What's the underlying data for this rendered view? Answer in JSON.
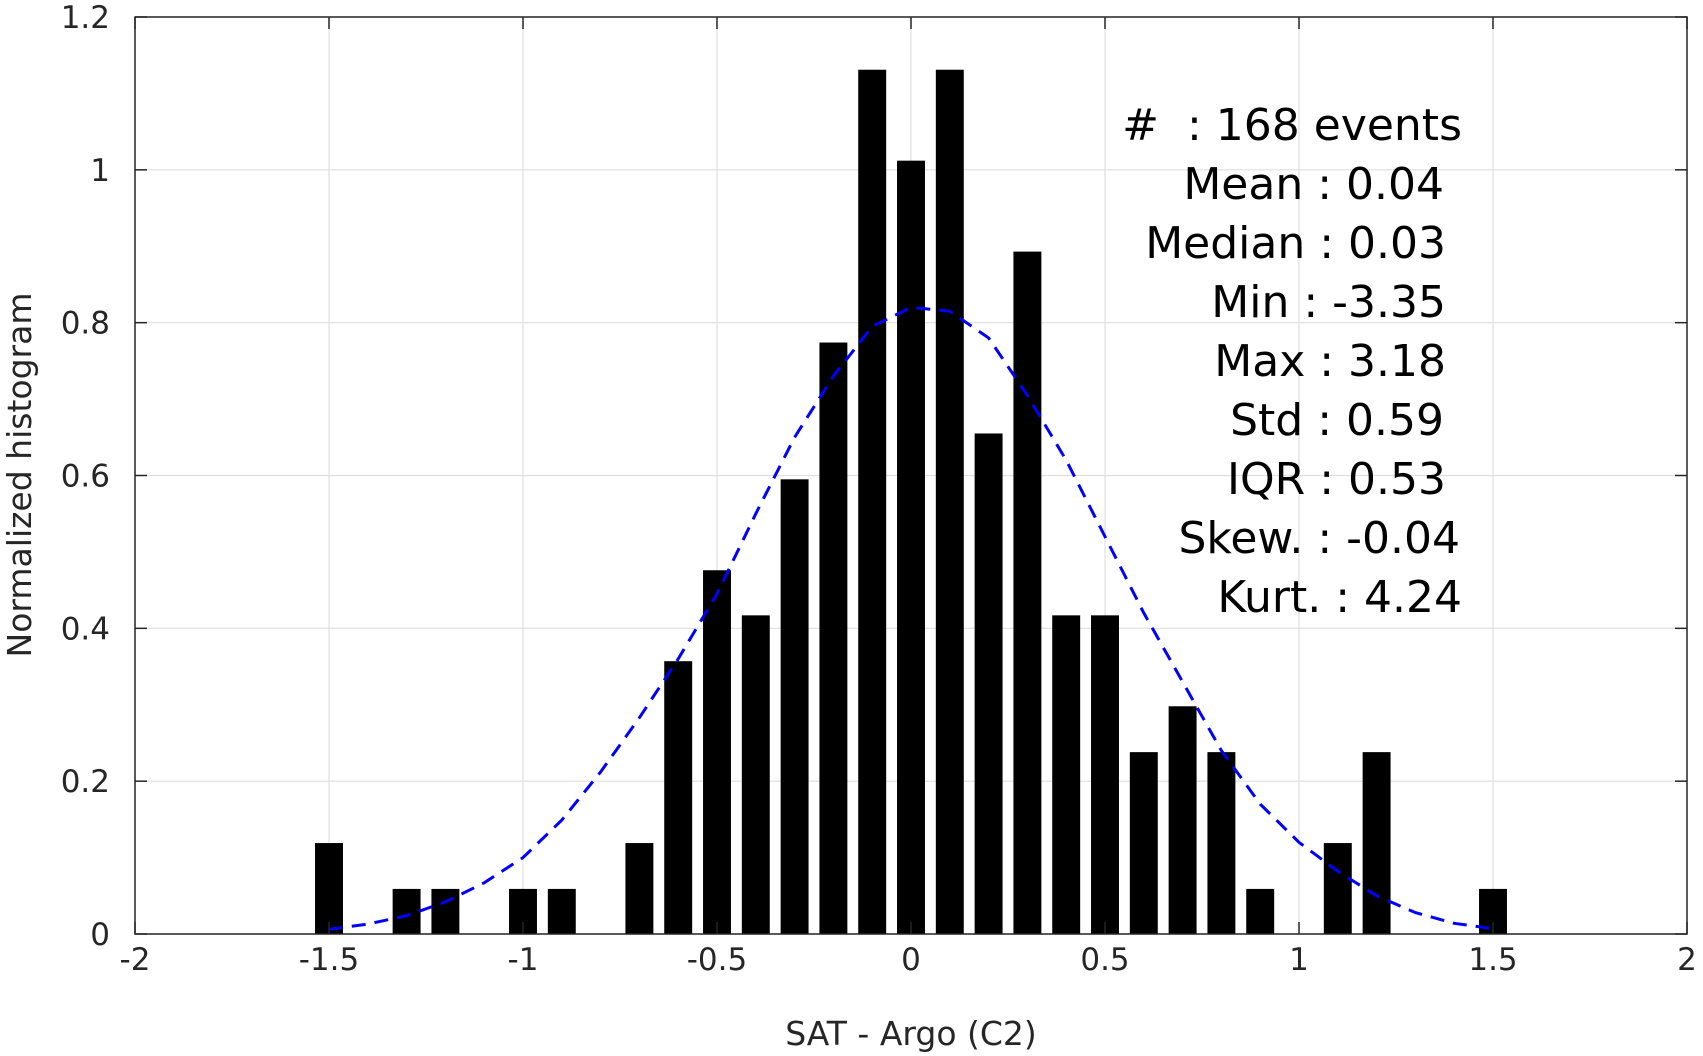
{
  "chart_data": {
    "type": "bar",
    "xlabel": "SAT - Argo (C2)",
    "ylabel": "Normalized histogram",
    "xlim": [
      -2,
      2
    ],
    "ylim": [
      0,
      1.2
    ],
    "xticks": [
      -2,
      -1.5,
      -1,
      -0.5,
      0,
      0.5,
      1,
      1.5,
      2
    ],
    "xtick_labels": [
      "-2",
      "-1.5",
      "-1",
      "-0.5",
      "0",
      "0.5",
      "1",
      "1.5",
      "2"
    ],
    "yticks": [
      0,
      0.2,
      0.4,
      0.6,
      0.8,
      1,
      1.2
    ],
    "ytick_labels": [
      "0",
      "0.2",
      "0.4",
      "0.6",
      "0.8",
      "1",
      "1.2"
    ],
    "grid": true,
    "bar_color": "#000000",
    "bars": {
      "x": [
        -1.5,
        -1.3,
        -1.2,
        -1.0,
        -0.9,
        -0.7,
        -0.6,
        -0.5,
        -0.4,
        -0.3,
        -0.2,
        -0.1,
        0.0,
        0.1,
        0.2,
        0.3,
        0.4,
        0.5,
        0.6,
        0.7,
        0.8,
        0.9,
        1.1,
        1.2,
        1.5
      ],
      "values": [
        0.119,
        0.059,
        0.059,
        0.059,
        0.059,
        0.119,
        0.357,
        0.476,
        0.417,
        0.595,
        0.774,
        1.131,
        1.012,
        1.131,
        0.655,
        0.893,
        0.417,
        0.417,
        0.238,
        0.298,
        0.238,
        0.059,
        0.119,
        0.238,
        0.059
      ]
    },
    "fit_curve": {
      "color": "#0000ff",
      "style": "dashed",
      "x": [
        -1.5,
        -1.4,
        -1.3,
        -1.2,
        -1.1,
        -1.0,
        -0.9,
        -0.8,
        -0.7,
        -0.6,
        -0.5,
        -0.4,
        -0.3,
        -0.2,
        -0.1,
        0.0,
        0.1,
        0.2,
        0.3,
        0.4,
        0.5,
        0.6,
        0.7,
        0.8,
        0.9,
        1.0,
        1.1,
        1.2,
        1.3,
        1.4,
        1.5
      ],
      "y": [
        0.006,
        0.013,
        0.024,
        0.042,
        0.067,
        0.1,
        0.149,
        0.212,
        0.283,
        0.36,
        0.445,
        0.55,
        0.65,
        0.73,
        0.795,
        0.82,
        0.815,
        0.78,
        0.705,
        0.62,
        0.52,
        0.42,
        0.33,
        0.24,
        0.17,
        0.12,
        0.082,
        0.05,
        0.028,
        0.014,
        0.007
      ]
    },
    "annotations": [
      "#  : 168 events",
      "Mean : 0.04",
      "Median : 0.03",
      "Min : -3.35",
      "Max : 3.18",
      "Std : 0.59",
      "IQR : 0.53",
      "Skew. : -0.04",
      "Kurt. : 4.24"
    ]
  }
}
